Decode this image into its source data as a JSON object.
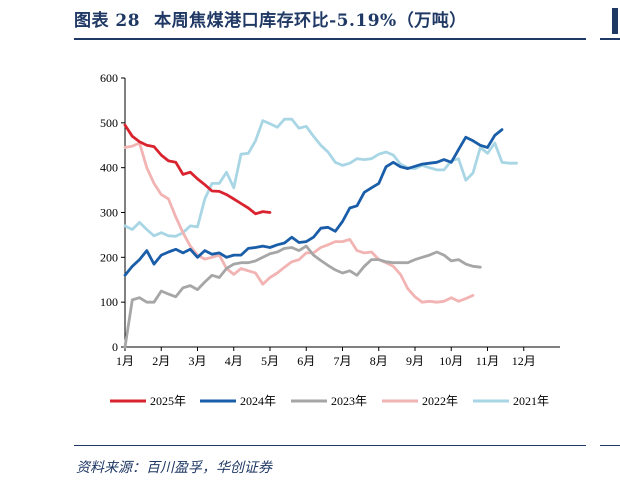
{
  "header": {
    "figure_label": "图表 28",
    "title": "本周焦煤港口库存环比-5.19%（万吨）"
  },
  "source": "资料来源：百川盈孚，华创证券",
  "chart_data": {
    "type": "line",
    "title": "本周焦煤港口库存环比-5.19%（万吨）",
    "xlabel": "",
    "ylabel": "",
    "ylim": [
      0,
      600
    ],
    "xlim": [
      1,
      13
    ],
    "yticks": [
      0,
      100,
      200,
      300,
      400,
      500,
      600
    ],
    "xticks": [
      {
        "v": 1,
        "label": "1月"
      },
      {
        "v": 2,
        "label": "2月"
      },
      {
        "v": 3,
        "label": "3月"
      },
      {
        "v": 4,
        "label": "4月"
      },
      {
        "v": 5,
        "label": "5月"
      },
      {
        "v": 6,
        "label": "6月"
      },
      {
        "v": 7,
        "label": "7月"
      },
      {
        "v": 8,
        "label": "8月"
      },
      {
        "v": 9,
        "label": "9月"
      },
      {
        "v": 10,
        "label": "10月"
      },
      {
        "v": 11,
        "label": "11月"
      },
      {
        "v": 12,
        "label": "12月"
      }
    ],
    "grid": false,
    "legend_position": "bottom",
    "series": [
      {
        "name": "2025年",
        "color": "#d9232e",
        "width": 2.8,
        "x": [
          1.0,
          1.2,
          1.4,
          1.6,
          1.8,
          2.0,
          2.2,
          2.4,
          2.6,
          2.8,
          3.0,
          3.2,
          3.4,
          3.6,
          3.8,
          4.0,
          4.2,
          4.4,
          4.6,
          4.8,
          5.0,
          5.2,
          5.4
        ],
        "y": [
          495,
          470,
          458,
          450,
          447,
          428,
          415,
          412,
          385,
          390,
          375,
          362,
          348,
          347,
          340,
          330,
          320,
          310,
          297,
          302,
          300,
          0,
          0
        ]
      },
      {
        "name": "2024年",
        "color": "#1a5da8",
        "width": 2.8,
        "x": [
          1.0,
          1.2,
          1.4,
          1.6,
          1.8,
          2.0,
          2.2,
          2.4,
          2.6,
          2.8,
          3.0,
          3.2,
          3.4,
          3.6,
          3.8,
          4.0,
          4.2,
          4.4,
          4.6,
          4.8,
          5.0,
          5.2,
          5.4,
          5.6,
          5.8,
          6.0,
          6.2,
          6.4,
          6.6,
          6.8,
          7.0,
          7.2,
          7.4,
          7.6,
          7.8,
          8.0,
          8.2,
          8.4,
          8.6,
          8.8,
          9.0,
          9.2,
          9.4,
          9.6,
          9.8,
          10.0,
          10.2,
          10.4,
          10.6,
          10.8,
          11.0,
          11.2,
          11.4,
          11.6,
          11.8,
          12.0,
          12.2,
          12.4,
          12.6,
          12.8
        ],
        "y": [
          160,
          180,
          195,
          215,
          185,
          205,
          212,
          218,
          210,
          218,
          200,
          215,
          207,
          210,
          200,
          205,
          205,
          220,
          222,
          225,
          222,
          228,
          232,
          245,
          233,
          235,
          245,
          265,
          267,
          258,
          280,
          310,
          315,
          345,
          355,
          365,
          402,
          412,
          402,
          398,
          403,
          408,
          410,
          412,
          418,
          412,
          440,
          468,
          460,
          450,
          445,
          472,
          485,
          0,
          0,
          0,
          0,
          0,
          0,
          0
        ]
      },
      {
        "name": "2023年",
        "color": "#a6a6a6",
        "width": 2.8,
        "x": [
          1.0,
          1.2,
          1.4,
          1.6,
          1.8,
          2.0,
          2.2,
          2.4,
          2.6,
          2.8,
          3.0,
          3.2,
          3.4,
          3.6,
          3.8,
          4.0,
          4.2,
          4.4,
          4.6,
          4.8,
          5.0,
          5.2,
          5.4,
          5.6,
          5.8,
          6.0,
          6.2,
          6.4,
          6.6,
          6.8,
          7.0,
          7.2,
          7.4,
          7.6,
          7.8,
          8.0,
          8.2,
          8.4,
          8.6,
          8.8,
          9.0,
          9.2,
          9.4,
          9.6,
          9.8,
          10.0,
          10.2,
          10.4,
          10.6,
          10.8,
          11.0,
          11.2,
          11.4,
          11.6,
          11.8,
          12.0,
          12.2,
          12.4,
          12.6,
          12.8
        ],
        "y": [
          0,
          105,
          110,
          100,
          100,
          125,
          118,
          112,
          132,
          137,
          128,
          145,
          160,
          155,
          175,
          185,
          188,
          188,
          192,
          200,
          208,
          212,
          220,
          222,
          215,
          225,
          205,
          193,
          182,
          172,
          165,
          170,
          160,
          180,
          195,
          195,
          190,
          188,
          188,
          188,
          195,
          200,
          205,
          212,
          205,
          192,
          195,
          185,
          180,
          178,
          0,
          0,
          0,
          0,
          0,
          0,
          0,
          0,
          0,
          0
        ]
      },
      {
        "name": "2022年",
        "color": "#f2b3b3",
        "width": 2.8,
        "x": [
          1.0,
          1.2,
          1.4,
          1.6,
          1.8,
          2.0,
          2.2,
          2.4,
          2.6,
          2.8,
          3.0,
          3.2,
          3.4,
          3.6,
          3.8,
          4.0,
          4.2,
          4.4,
          4.6,
          4.8,
          5.0,
          5.2,
          5.4,
          5.6,
          5.8,
          6.0,
          6.2,
          6.4,
          6.6,
          6.8,
          7.0,
          7.2,
          7.4,
          7.6,
          7.8,
          8.0,
          8.2,
          8.4,
          8.6,
          8.8,
          9.0,
          9.2,
          9.4,
          9.6,
          9.8,
          10.0,
          10.2,
          10.4,
          10.6,
          10.8,
          11.0,
          11.2,
          11.4,
          11.6,
          11.8,
          12.0,
          12.2,
          12.4,
          12.6,
          12.8
        ],
        "y": [
          445,
          448,
          455,
          400,
          365,
          340,
          330,
          290,
          255,
          225,
          205,
          196,
          200,
          205,
          175,
          162,
          175,
          170,
          165,
          140,
          155,
          165,
          178,
          190,
          195,
          210,
          210,
          222,
          228,
          235,
          235,
          240,
          215,
          210,
          212,
          195,
          188,
          180,
          162,
          130,
          112,
          100,
          102,
          100,
          102,
          110,
          102,
          108,
          115,
          0,
          0,
          0,
          0,
          0,
          0,
          0,
          0,
          0,
          0,
          0
        ]
      },
      {
        "name": "2021年",
        "color": "#a9d6e5",
        "width": 2.8,
        "x": [
          1.0,
          1.2,
          1.4,
          1.6,
          1.8,
          2.0,
          2.2,
          2.4,
          2.6,
          2.8,
          3.0,
          3.2,
          3.4,
          3.6,
          3.8,
          4.0,
          4.2,
          4.4,
          4.6,
          4.8,
          5.0,
          5.2,
          5.4,
          5.6,
          5.8,
          6.0,
          6.2,
          6.4,
          6.6,
          6.8,
          7.0,
          7.2,
          7.4,
          7.6,
          7.8,
          8.0,
          8.2,
          8.4,
          8.6,
          8.8,
          9.0,
          9.2,
          9.4,
          9.6,
          9.8,
          10.0,
          10.2,
          10.4,
          10.6,
          10.8,
          11.0,
          11.2,
          11.4,
          11.6,
          11.8,
          12.0,
          12.2,
          12.4,
          12.6,
          12.8
        ],
        "y": [
          270,
          262,
          278,
          262,
          248,
          255,
          248,
          247,
          255,
          270,
          268,
          330,
          365,
          365,
          390,
          355,
          430,
          432,
          460,
          505,
          498,
          490,
          508,
          508,
          488,
          492,
          470,
          450,
          435,
          412,
          405,
          410,
          420,
          418,
          420,
          430,
          435,
          428,
          408,
          400,
          398,
          405,
          400,
          395,
          395,
          415,
          420,
          372,
          388,
          445,
          432,
          455,
          412,
          410,
          410,
          0,
          0,
          0,
          0,
          0
        ]
      }
    ]
  },
  "legend": [
    {
      "label": "2025年",
      "color": "#d9232e"
    },
    {
      "label": "2024年",
      "color": "#1a5da8"
    },
    {
      "label": "2023年",
      "color": "#a6a6a6"
    },
    {
      "label": "2022年",
      "color": "#f2b3b3"
    },
    {
      "label": "2021年",
      "color": "#a9d6e5"
    }
  ]
}
